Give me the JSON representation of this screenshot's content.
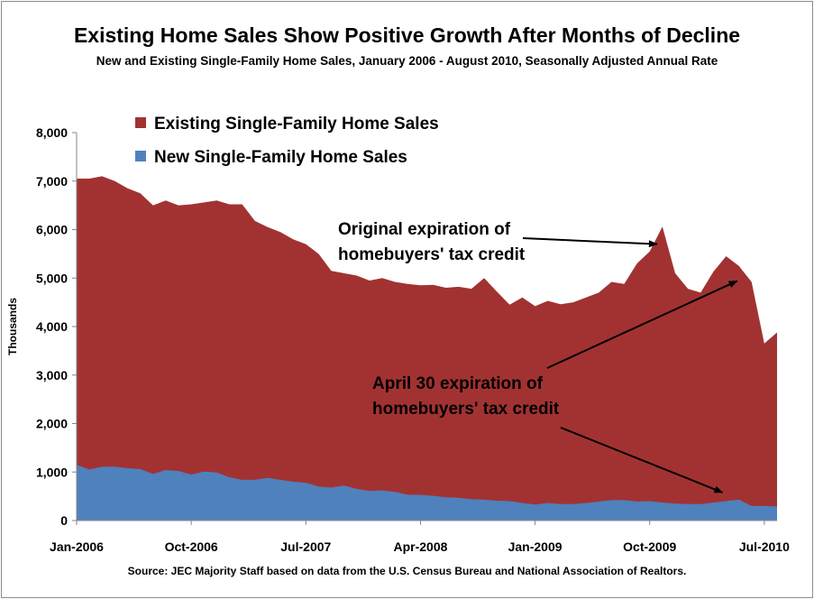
{
  "chart_data": {
    "type": "area",
    "title": "Existing Home Sales Show Positive Growth After Months of Decline",
    "subtitle": "New and Existing Single-Family Home Sales, January 2006 - August 2010, Seasonally Adjusted Annual Rate",
    "ylabel": "Thousands",
    "xlabel": "",
    "ylim": [
      0,
      8000
    ],
    "yticks": [
      0,
      1000,
      2000,
      3000,
      4000,
      5000,
      6000,
      7000,
      8000
    ],
    "ytick_labels": [
      "0",
      "1,000",
      "2,000",
      "3,000",
      "4,000",
      "5,000",
      "6,000",
      "7,000",
      "8,000"
    ],
    "xtick_labels": [
      "Jan-2006",
      "Oct-2006",
      "Jul-2007",
      "Apr-2008",
      "Jan-2009",
      "Oct-2009",
      "Jul-2010"
    ],
    "xtick_indices": [
      0,
      9,
      18,
      27,
      36,
      45,
      54
    ],
    "categories": [
      "Jan-2006",
      "Feb-2006",
      "Mar-2006",
      "Apr-2006",
      "May-2006",
      "Jun-2006",
      "Jul-2006",
      "Aug-2006",
      "Sep-2006",
      "Oct-2006",
      "Nov-2006",
      "Dec-2006",
      "Jan-2007",
      "Feb-2007",
      "Mar-2007",
      "Apr-2007",
      "May-2007",
      "Jun-2007",
      "Jul-2007",
      "Aug-2007",
      "Sep-2007",
      "Oct-2007",
      "Nov-2007",
      "Dec-2007",
      "Jan-2008",
      "Feb-2008",
      "Mar-2008",
      "Apr-2008",
      "May-2008",
      "Jun-2008",
      "Jul-2008",
      "Aug-2008",
      "Sep-2008",
      "Oct-2008",
      "Nov-2008",
      "Dec-2008",
      "Jan-2009",
      "Feb-2009",
      "Mar-2009",
      "Apr-2009",
      "May-2009",
      "Jun-2009",
      "Jul-2009",
      "Aug-2009",
      "Sep-2009",
      "Oct-2009",
      "Nov-2009",
      "Dec-2009",
      "Jan-2010",
      "Feb-2010",
      "Mar-2010",
      "Apr-2010",
      "May-2010",
      "Jun-2010",
      "Jul-2010",
      "Aug-2010"
    ],
    "series": [
      {
        "name": "Existing Single-Family Home Sales",
        "color": "#a23232",
        "stacked_total": [
          7050,
          7050,
          7100,
          7000,
          6850,
          6750,
          6500,
          6600,
          6500,
          6520,
          6560,
          6600,
          6520,
          6520,
          6180,
          6050,
          5950,
          5800,
          5700,
          5500,
          5150,
          5100,
          5050,
          4950,
          5000,
          4920,
          4880,
          4850,
          4860,
          4800,
          4820,
          4780,
          5000,
          4720,
          4450,
          4600,
          4420,
          4530,
          4460,
          4500,
          4600,
          4700,
          4920,
          4880,
          5300,
          5550,
          6060,
          5100,
          4780,
          4700,
          5130,
          5450,
          5250,
          4920,
          3650,
          3880
        ]
      },
      {
        "name": "New Single-Family Home Sales",
        "color": "#4f81bd",
        "values": [
          1150,
          1050,
          1110,
          1110,
          1080,
          1060,
          960,
          1040,
          1020,
          950,
          1010,
          990,
          890,
          840,
          840,
          880,
          840,
          800,
          780,
          700,
          680,
          720,
          650,
          610,
          620,
          590,
          530,
          530,
          510,
          480,
          470,
          440,
          430,
          410,
          400,
          360,
          330,
          360,
          340,
          340,
          360,
          390,
          420,
          420,
          390,
          400,
          370,
          350,
          340,
          340,
          370,
          400,
          430,
          300,
          300,
          290
        ]
      }
    ],
    "annotations": [
      {
        "id": "original",
        "lines": [
          "Original expiration of",
          "homebuyers' tax credit"
        ],
        "target_index": 46,
        "target_value": 5700
      },
      {
        "id": "april30",
        "lines": [
          "April 30 expiration of",
          "homebuyers' tax credit"
        ],
        "target_index": 52,
        "target_value": 5050,
        "second_target_index": 51,
        "second_target_value": 430
      }
    ]
  },
  "source": "Source: JEC Majority Staff based on data from the U.S. Census Bureau and National Association of Realtors."
}
